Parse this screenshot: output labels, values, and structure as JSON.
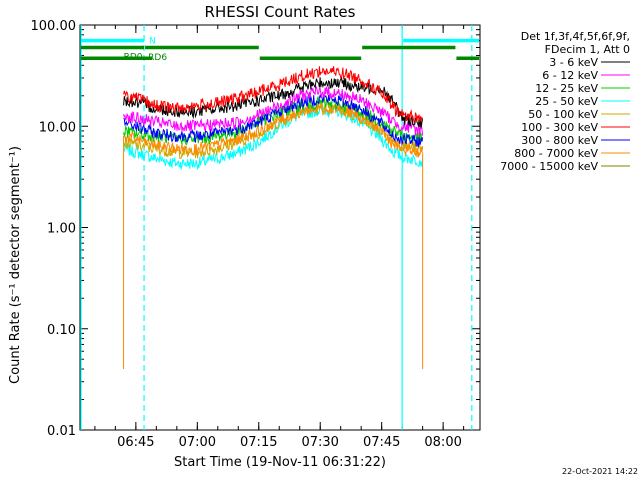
{
  "chart_data": {
    "type": "line",
    "title": "RHESSI Count Rates",
    "xlabel": "Start Time (19-Nov-11 06:31:22)",
    "ylabel": "Count Rate (s⁻¹ detector segment⁻¹)",
    "x_unit": "UT time of day",
    "x_range": [
      "06:31:22",
      "08:09:00"
    ],
    "y_scale": "log",
    "ylim": [
      0.01,
      100
    ],
    "x_ticks": [
      "06:45",
      "07:00",
      "07:15",
      "07:30",
      "07:45",
      "08:00"
    ],
    "y_ticks": [
      "0.01",
      "0.10",
      "1.00",
      "10.00",
      "100.00"
    ],
    "grid": false,
    "legend_position": "top-right",
    "legend_header": [
      "Det 1f,3f,4f,5f,6f,9f,",
      "FDecim 1, Att 0"
    ],
    "series_sample_times": [
      "06:42",
      "06:45",
      "06:50",
      "06:55",
      "07:00",
      "07:05",
      "07:10",
      "07:15",
      "07:20",
      "07:25",
      "07:30",
      "07:35",
      "07:40",
      "07:45",
      "07:48",
      "07:50",
      "07:55"
    ],
    "series": [
      {
        "name": "3 - 6 keV",
        "color": "#000000",
        "values": [
          18,
          17,
          15,
          14,
          14,
          15,
          16,
          18,
          20,
          24,
          27,
          27,
          24,
          24,
          17,
          12,
          11
        ]
      },
      {
        "name": "6 - 12 keV",
        "color": "#ff00ff",
        "values": [
          13,
          12,
          11,
          10,
          10,
          10.5,
          11,
          13,
          16,
          20,
          22,
          21,
          18,
          14,
          11,
          10,
          9
        ]
      },
      {
        "name": "12 - 25 keV",
        "color": "#00cc00",
        "values": [
          9,
          8.5,
          8,
          7.5,
          7.5,
          8,
          9,
          11,
          13.5,
          16,
          17,
          16.5,
          14,
          11,
          9,
          8,
          7.5
        ]
      },
      {
        "name": "25 - 50 keV",
        "color": "#00ffff",
        "values": [
          6,
          5.5,
          4.8,
          4.3,
          4.3,
          4.8,
          5.5,
          7,
          10,
          13,
          14.5,
          14,
          11,
          7.5,
          5.5,
          5,
          4.5
        ]
      },
      {
        "name": "50 - 100 keV",
        "color": "#ccaa00",
        "values": [
          7,
          6.5,
          6,
          5.5,
          5.5,
          6,
          7,
          8.5,
          11,
          14,
          15,
          14.5,
          12,
          9,
          7,
          6.5,
          6
        ]
      },
      {
        "name": "100 - 300 keV",
        "color": "#ff0000",
        "values": [
          20,
          19,
          16,
          15,
          16,
          17,
          19,
          22,
          26,
          31,
          35,
          34,
          29,
          21,
          15,
          13,
          12
        ]
      },
      {
        "name": "300 - 800 keV",
        "color": "#0000ff",
        "values": [
          11,
          10,
          8.5,
          8,
          8,
          8.5,
          9.5,
          11,
          14,
          17,
          19,
          18,
          15,
          10.5,
          8,
          7.5,
          7
        ]
      },
      {
        "name": "800 - 7000 keV",
        "color": "#ff8800",
        "values": [
          8,
          7.5,
          6.5,
          6,
          6,
          6.5,
          7.5,
          9,
          11.5,
          14,
          15.5,
          15,
          12.5,
          9,
          6.5,
          6,
          5.5
        ]
      },
      {
        "name": "7000 - 15000 keV",
        "color": "#808000",
        "values": [
          null,
          null,
          null,
          null,
          null,
          null,
          null,
          null,
          null,
          null,
          null,
          null,
          null,
          null,
          null,
          null,
          null
        ]
      }
    ],
    "orange_drop_value": 0.04,
    "orange_drop_times": [
      "06:42",
      "07:55"
    ],
    "annotation_bars": [
      {
        "label": "N",
        "color": "#00ffff",
        "y_value": 70,
        "segments": [
          [
            "06:31:22",
            "06:47"
          ],
          [
            "07:50",
            "08:09"
          ]
        ]
      },
      {
        "label": "RD0",
        "color": "#008800",
        "y_value": 60,
        "segments": [
          [
            "06:31:22",
            "06:47"
          ],
          [
            "06:47",
            "07:15"
          ],
          [
            "07:40",
            "08:03"
          ]
        ]
      },
      {
        "label": "RD6",
        "color": "#008800",
        "y_value": 47,
        "segments": [
          [
            "06:31:22",
            "06:49"
          ],
          [
            "07:15",
            "07:40"
          ],
          [
            "08:03",
            "08:09"
          ]
        ]
      }
    ],
    "cyan_solid_lines": [
      "06:31:22",
      "07:50"
    ],
    "cyan_dashed_lines": [
      "06:47",
      "08:07"
    ]
  },
  "footer_date": "22-Oct-2021 14:22"
}
